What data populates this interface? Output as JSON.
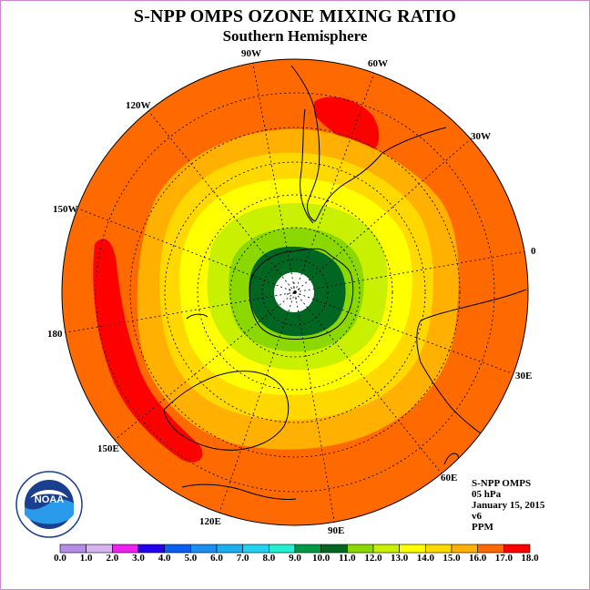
{
  "title": "S-NPP OMPS OZONE MIXING RATIO",
  "subtitle": "Southern Hemisphere",
  "logo_text": "NOAA",
  "longitude_labels": [
    "90W",
    "60W",
    "30W",
    "0",
    "30E",
    "60E",
    "90E",
    "120E",
    "150E",
    "180",
    "150W",
    "120W"
  ],
  "info": {
    "instrument": "S-NPP OMPS",
    "level": "05 hPa",
    "date": "January 15, 2015",
    "version": "v6",
    "units": "PPM"
  },
  "colorbar": {
    "ticks": [
      "0.0",
      "1.0",
      "2.0",
      "3.0",
      "4.0",
      "5.0",
      "6.0",
      "7.0",
      "8.0",
      "9.0",
      "10.0",
      "11.0",
      "12.0",
      "13.0",
      "14.0",
      "15.0",
      "16.0",
      "17.0",
      "18.0"
    ],
    "colors": [
      "#b58ce8",
      "#d6b4f0",
      "#ee22ee",
      "#2200ee",
      "#0a5ff0",
      "#1a8ff0",
      "#1ab0f0",
      "#22d0f0",
      "#22f0d0",
      "#009944",
      "#006622",
      "#8ad800",
      "#c8f000",
      "#ffff00",
      "#ffd800",
      "#ffb000",
      "#ff6a00",
      "#ff0000",
      "#8a5a3a"
    ]
  },
  "colors": {
    "ocean_max_band": "#ff6a00",
    "high_band": "#ff0000",
    "coast": "#000000",
    "frame": "#cc88cc"
  }
}
